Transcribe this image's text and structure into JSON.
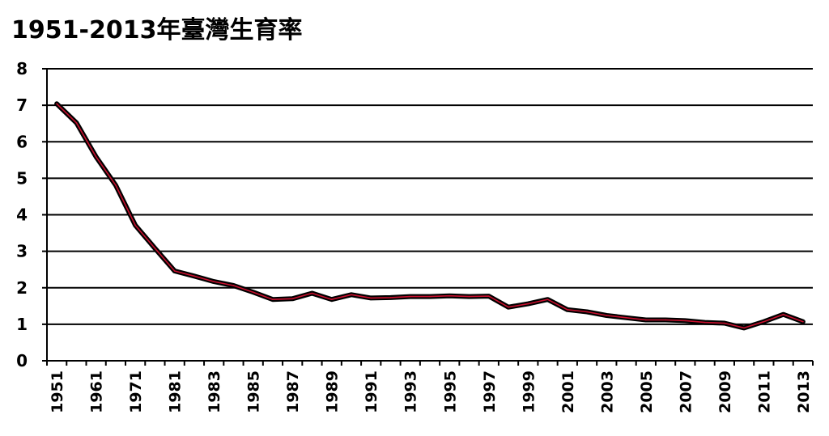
{
  "chart_data": {
    "type": "line",
    "title": "1951-2013年臺灣生育率",
    "xlabel": "",
    "ylabel": "",
    "ylim": [
      0,
      8
    ],
    "yticks": [
      0,
      1,
      2,
      3,
      4,
      5,
      6,
      7,
      8
    ],
    "grid": true,
    "legend": "none",
    "x": [
      "1951",
      "1956",
      "1961",
      "1966",
      "1971",
      "1976",
      "1981",
      "1982",
      "1983",
      "1984",
      "1985",
      "1986",
      "1987",
      "1988",
      "1989",
      "1990",
      "1991",
      "1992",
      "1993",
      "1994",
      "1995",
      "1996",
      "1997",
      "1998",
      "1999",
      "2000",
      "2001",
      "2002",
      "2003",
      "2004",
      "2005",
      "2006",
      "2007",
      "2008",
      "2009",
      "2010",
      "2011",
      "2012",
      "2013"
    ],
    "xtick_labels": [
      "1951",
      "1961",
      "1971",
      "1981",
      "1983",
      "1985",
      "1987",
      "1989",
      "1991",
      "1993",
      "1995",
      "1997",
      "1999",
      "2001",
      "2003",
      "2005",
      "2007",
      "2009",
      "2011",
      "2013"
    ],
    "series": [
      {
        "values": [
          7.04,
          6.52,
          5.59,
          4.81,
          3.71,
          3.08,
          2.46,
          2.32,
          2.17,
          2.06,
          1.88,
          1.68,
          1.7,
          1.85,
          1.68,
          1.81,
          1.72,
          1.73,
          1.76,
          1.76,
          1.78,
          1.76,
          1.77,
          1.47,
          1.56,
          1.68,
          1.4,
          1.34,
          1.24,
          1.18,
          1.12,
          1.12,
          1.1,
          1.05,
          1.03,
          0.9,
          1.07,
          1.27,
          1.07
        ],
        "color": "#c8102e",
        "outline": "#000000"
      }
    ],
    "gridline_color": "#000000",
    "axis_color": "#000000"
  }
}
